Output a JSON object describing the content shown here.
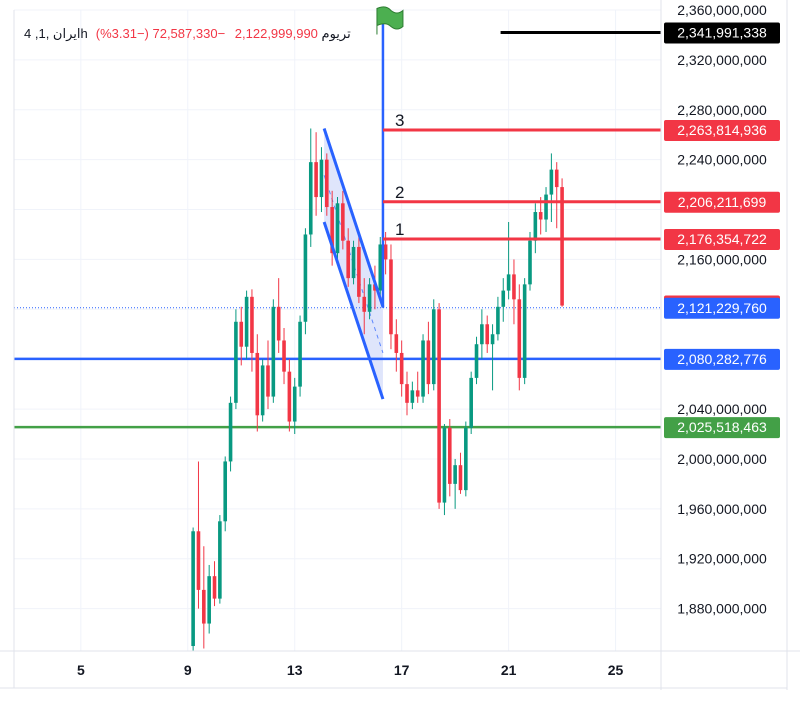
{
  "legend": {
    "symbol": "4 ,ایران ,1hتریوم",
    "price": "2,122,999,990",
    "change": "−72,587,330 (−3.31%)"
  },
  "colors": {
    "up": "#089981",
    "down": "#f23645",
    "blue_line": "#2962ff",
    "green_line": "#43a047",
    "black_line": "#000000",
    "grid": "#f0f3fa",
    "axis_text": "#131722",
    "channel_fill": "#c5cff7"
  },
  "chart_data": {
    "type": "candlestick",
    "x_axis": {
      "ticks": [
        5,
        9,
        13,
        17,
        21,
        25
      ],
      "range": [
        2.5,
        26.7
      ]
    },
    "y_axis": {
      "range": [
        1846000000,
        2360000000
      ],
      "ticks": [
        1880000000,
        1920000000,
        1960000000,
        2000000000,
        2040000000,
        2160000000,
        2240000000,
        2280000000,
        2320000000,
        2360000000
      ],
      "tick_labels": [
        "1,880,000,000",
        "1,920,000,000",
        "1,960,000,000",
        "2,000,000,000",
        "2,040,000,000",
        "2,160,000,000",
        "2,240,000,000",
        "2,280,000,000",
        "2,320,000,000",
        "2,360,000,000"
      ]
    },
    "price_labels": [
      {
        "value": 2341991338,
        "label": "2,341,991,338",
        "color": "#000000"
      },
      {
        "value": 2263814936,
        "label": "2,263,814,936",
        "color": "#f23645"
      },
      {
        "value": 2206211699,
        "label": "2,206,211,699",
        "color": "#f23645"
      },
      {
        "value": 2176354722,
        "label": "2,176,354,722",
        "color": "#f23645"
      },
      {
        "value": 2122999990,
        "label": "2,122,999,990",
        "color": "#f23645"
      },
      {
        "value": 2121229760,
        "label": "2,121,229,760",
        "color": "#2962ff"
      },
      {
        "value": 2080282776,
        "label": "2,080,282,776",
        "color": "#2962ff"
      },
      {
        "value": 2025518463,
        "label": "2,025,518,463",
        "color": "#43a047"
      }
    ],
    "horizontal_lines": [
      {
        "value": 2080282776,
        "x_start": 2.5,
        "color": "#2962ff",
        "width": 2.5
      },
      {
        "value": 2025518463,
        "x_start": 2.5,
        "color": "#43a047",
        "width": 2.5
      },
      {
        "value": 2121229760,
        "x_start": 2.5,
        "color": "#2962ff",
        "width": 1,
        "dotted": true
      },
      {
        "value": 2341991338,
        "x_start": 20.7,
        "color": "#000000",
        "width": 3
      }
    ],
    "target_lines": [
      {
        "label": "3",
        "value": 2263814936,
        "x_start": 16.3
      },
      {
        "label": "2",
        "value": 2206211699,
        "x_start": 16.3
      },
      {
        "label": "1",
        "value": 2176354722,
        "x_start": 16.3
      }
    ],
    "flag_pole": {
      "x": 16.3,
      "bottom": 2121229760,
      "top": 2358000000
    },
    "channel": {
      "upper": [
        [
          14.1,
          2265000000
        ],
        [
          16.3,
          2122000000
        ]
      ],
      "lower": [
        [
          14.1,
          2190000000
        ],
        [
          16.3,
          2048000000
        ]
      ]
    },
    "candles": [
      {
        "x": 9.2,
        "o": 1850000000,
        "h": 1945000000,
        "l": 1840000000,
        "c": 1942000000
      },
      {
        "x": 9.4,
        "o": 1942000000,
        "h": 1998000000,
        "l": 1880000000,
        "c": 1895000000
      },
      {
        "x": 9.6,
        "o": 1895000000,
        "h": 1930000000,
        "l": 1848000000,
        "c": 1868000000
      },
      {
        "x": 9.8,
        "o": 1868000000,
        "h": 1915000000,
        "l": 1860000000,
        "c": 1906000000
      },
      {
        "x": 10.0,
        "o": 1906000000,
        "h": 1918000000,
        "l": 1882000000,
        "c": 1888000000
      },
      {
        "x": 10.2,
        "o": 1888000000,
        "h": 1955000000,
        "l": 1884000000,
        "c": 1950000000
      },
      {
        "x": 10.4,
        "o": 1950000000,
        "h": 2002000000,
        "l": 1942000000,
        "c": 1998000000
      },
      {
        "x": 10.6,
        "o": 1998000000,
        "h": 2050000000,
        "l": 1990000000,
        "c": 2045000000
      },
      {
        "x": 10.8,
        "o": 2045000000,
        "h": 2120000000,
        "l": 2040000000,
        "c": 2110000000
      },
      {
        "x": 11.0,
        "o": 2110000000,
        "h": 2122000000,
        "l": 2075000000,
        "c": 2090000000
      },
      {
        "x": 11.2,
        "o": 2090000000,
        "h": 2135000000,
        "l": 2080000000,
        "c": 2130000000
      },
      {
        "x": 11.4,
        "o": 2130000000,
        "h": 2136000000,
        "l": 2070000000,
        "c": 2085000000
      },
      {
        "x": 11.6,
        "o": 2085000000,
        "h": 2100000000,
        "l": 2022000000,
        "c": 2035000000
      },
      {
        "x": 11.8,
        "o": 2035000000,
        "h": 2080000000,
        "l": 2030000000,
        "c": 2075000000
      },
      {
        "x": 12.0,
        "o": 2075000000,
        "h": 2095000000,
        "l": 2040000000,
        "c": 2050000000
      },
      {
        "x": 12.2,
        "o": 2050000000,
        "h": 2128000000,
        "l": 2045000000,
        "c": 2122000000
      },
      {
        "x": 12.4,
        "o": 2122000000,
        "h": 2145000000,
        "l": 2085000000,
        "c": 2095000000
      },
      {
        "x": 12.6,
        "o": 2095000000,
        "h": 2105000000,
        "l": 2060000000,
        "c": 2070000000
      },
      {
        "x": 12.8,
        "o": 2070000000,
        "h": 2080000000,
        "l": 2022000000,
        "c": 2030000000
      },
      {
        "x": 13.0,
        "o": 2030000000,
        "h": 2065000000,
        "l": 2020000000,
        "c": 2058000000
      },
      {
        "x": 13.2,
        "o": 2058000000,
        "h": 2115000000,
        "l": 2050000000,
        "c": 2110000000
      },
      {
        "x": 13.4,
        "o": 2110000000,
        "h": 2185000000,
        "l": 2100000000,
        "c": 2180000000
      },
      {
        "x": 13.6,
        "o": 2180000000,
        "h": 2265000000,
        "l": 2170000000,
        "c": 2238000000
      },
      {
        "x": 13.8,
        "o": 2238000000,
        "h": 2262000000,
        "l": 2195000000,
        "c": 2210000000
      },
      {
        "x": 14.0,
        "o": 2210000000,
        "h": 2250000000,
        "l": 2198000000,
        "c": 2240000000
      },
      {
        "x": 14.2,
        "o": 2240000000,
        "h": 2245000000,
        "l": 2195000000,
        "c": 2202000000
      },
      {
        "x": 14.4,
        "o": 2202000000,
        "h": 2215000000,
        "l": 2155000000,
        "c": 2165000000
      },
      {
        "x": 14.6,
        "o": 2165000000,
        "h": 2210000000,
        "l": 2160000000,
        "c": 2205000000
      },
      {
        "x": 14.8,
        "o": 2205000000,
        "h": 2215000000,
        "l": 2168000000,
        "c": 2175000000
      },
      {
        "x": 15.0,
        "o": 2175000000,
        "h": 2185000000,
        "l": 2138000000,
        "c": 2145000000
      },
      {
        "x": 15.2,
        "o": 2145000000,
        "h": 2175000000,
        "l": 2140000000,
        "c": 2170000000
      },
      {
        "x": 15.4,
        "o": 2170000000,
        "h": 2180000000,
        "l": 2125000000,
        "c": 2130000000
      },
      {
        "x": 15.6,
        "o": 2130000000,
        "h": 2145000000,
        "l": 2100000000,
        "c": 2118000000
      },
      {
        "x": 15.8,
        "o": 2118000000,
        "h": 2145000000,
        "l": 2112000000,
        "c": 2140000000
      },
      {
        "x": 16.0,
        "o": 2140000000,
        "h": 2155000000,
        "l": 2120000000,
        "c": 2135000000
      },
      {
        "x": 16.2,
        "o": 2135000000,
        "h": 2178000000,
        "l": 2130000000,
        "c": 2172000000
      },
      {
        "x": 16.4,
        "o": 2172000000,
        "h": 2182000000,
        "l": 2148000000,
        "c": 2160000000
      },
      {
        "x": 16.6,
        "o": 2160000000,
        "h": 2172000000,
        "l": 2088000000,
        "c": 2100000000
      },
      {
        "x": 16.8,
        "o": 2100000000,
        "h": 2112000000,
        "l": 2070000000,
        "c": 2085000000
      },
      {
        "x": 17.0,
        "o": 2085000000,
        "h": 2095000000,
        "l": 2050000000,
        "c": 2060000000
      },
      {
        "x": 17.2,
        "o": 2060000000,
        "h": 2070000000,
        "l": 2035000000,
        "c": 2045000000
      },
      {
        "x": 17.4,
        "o": 2045000000,
        "h": 2062000000,
        "l": 2040000000,
        "c": 2055000000
      },
      {
        "x": 17.6,
        "o": 2055000000,
        "h": 2070000000,
        "l": 2045000000,
        "c": 2050000000
      },
      {
        "x": 17.8,
        "o": 2050000000,
        "h": 2100000000,
        "l": 2045000000,
        "c": 2095000000
      },
      {
        "x": 18.0,
        "o": 2095000000,
        "h": 2110000000,
        "l": 2052000000,
        "c": 2060000000
      },
      {
        "x": 18.2,
        "o": 2060000000,
        "h": 2128000000,
        "l": 2055000000,
        "c": 2120000000
      },
      {
        "x": 18.4,
        "o": 2120000000,
        "h": 2125000000,
        "l": 1960000000,
        "c": 1965000000
      },
      {
        "x": 18.6,
        "o": 1965000000,
        "h": 2028000000,
        "l": 1955000000,
        "c": 2025000000
      },
      {
        "x": 18.8,
        "o": 2025000000,
        "h": 2032000000,
        "l": 1970000000,
        "c": 1980000000
      },
      {
        "x": 19.0,
        "o": 1980000000,
        "h": 2000000000,
        "l": 1960000000,
        "c": 1995000000
      },
      {
        "x": 19.2,
        "o": 1995000000,
        "h": 2005000000,
        "l": 1972000000,
        "c": 1975000000
      },
      {
        "x": 19.4,
        "o": 1975000000,
        "h": 2030000000,
        "l": 1970000000,
        "c": 2025000000
      },
      {
        "x": 19.6,
        "o": 2025000000,
        "h": 2070000000,
        "l": 2020000000,
        "c": 2065000000
      },
      {
        "x": 19.8,
        "o": 2065000000,
        "h": 2098000000,
        "l": 2060000000,
        "c": 2092000000
      },
      {
        "x": 20.0,
        "o": 2092000000,
        "h": 2120000000,
        "l": 2080000000,
        "c": 2108000000
      },
      {
        "x": 20.2,
        "o": 2108000000,
        "h": 2115000000,
        "l": 2085000000,
        "c": 2092000000
      },
      {
        "x": 20.4,
        "o": 2092000000,
        "h": 2108000000,
        "l": 2055000000,
        "c": 2100000000
      },
      {
        "x": 20.6,
        "o": 2100000000,
        "h": 2130000000,
        "l": 2095000000,
        "c": 2122000000
      },
      {
        "x": 20.8,
        "o": 2122000000,
        "h": 2145000000,
        "l": 2110000000,
        "c": 2135000000
      },
      {
        "x": 21.0,
        "o": 2135000000,
        "h": 2190000000,
        "l": 2128000000,
        "c": 2148000000
      },
      {
        "x": 21.2,
        "o": 2148000000,
        "h": 2160000000,
        "l": 2108000000,
        "c": 2128000000
      },
      {
        "x": 21.4,
        "o": 2128000000,
        "h": 2140000000,
        "l": 2055000000,
        "c": 2065000000
      },
      {
        "x": 21.6,
        "o": 2065000000,
        "h": 2145000000,
        "l": 2060000000,
        "c": 2140000000
      },
      {
        "x": 21.8,
        "o": 2140000000,
        "h": 2182000000,
        "l": 2135000000,
        "c": 2175000000
      },
      {
        "x": 22.0,
        "o": 2175000000,
        "h": 2205000000,
        "l": 2165000000,
        "c": 2198000000
      },
      {
        "x": 22.2,
        "o": 2198000000,
        "h": 2210000000,
        "l": 2180000000,
        "c": 2192000000
      },
      {
        "x": 22.4,
        "o": 2192000000,
        "h": 2218000000,
        "l": 2182000000,
        "c": 2212000000
      },
      {
        "x": 22.6,
        "o": 2212000000,
        "h": 2245000000,
        "l": 2190000000,
        "c": 2232000000
      },
      {
        "x": 22.8,
        "o": 2232000000,
        "h": 2238000000,
        "l": 2185000000,
        "c": 2218000000
      },
      {
        "x": 23.0,
        "o": 2218000000,
        "h": 2225000000,
        "l": 2122000000,
        "c": 2123000000
      }
    ]
  }
}
